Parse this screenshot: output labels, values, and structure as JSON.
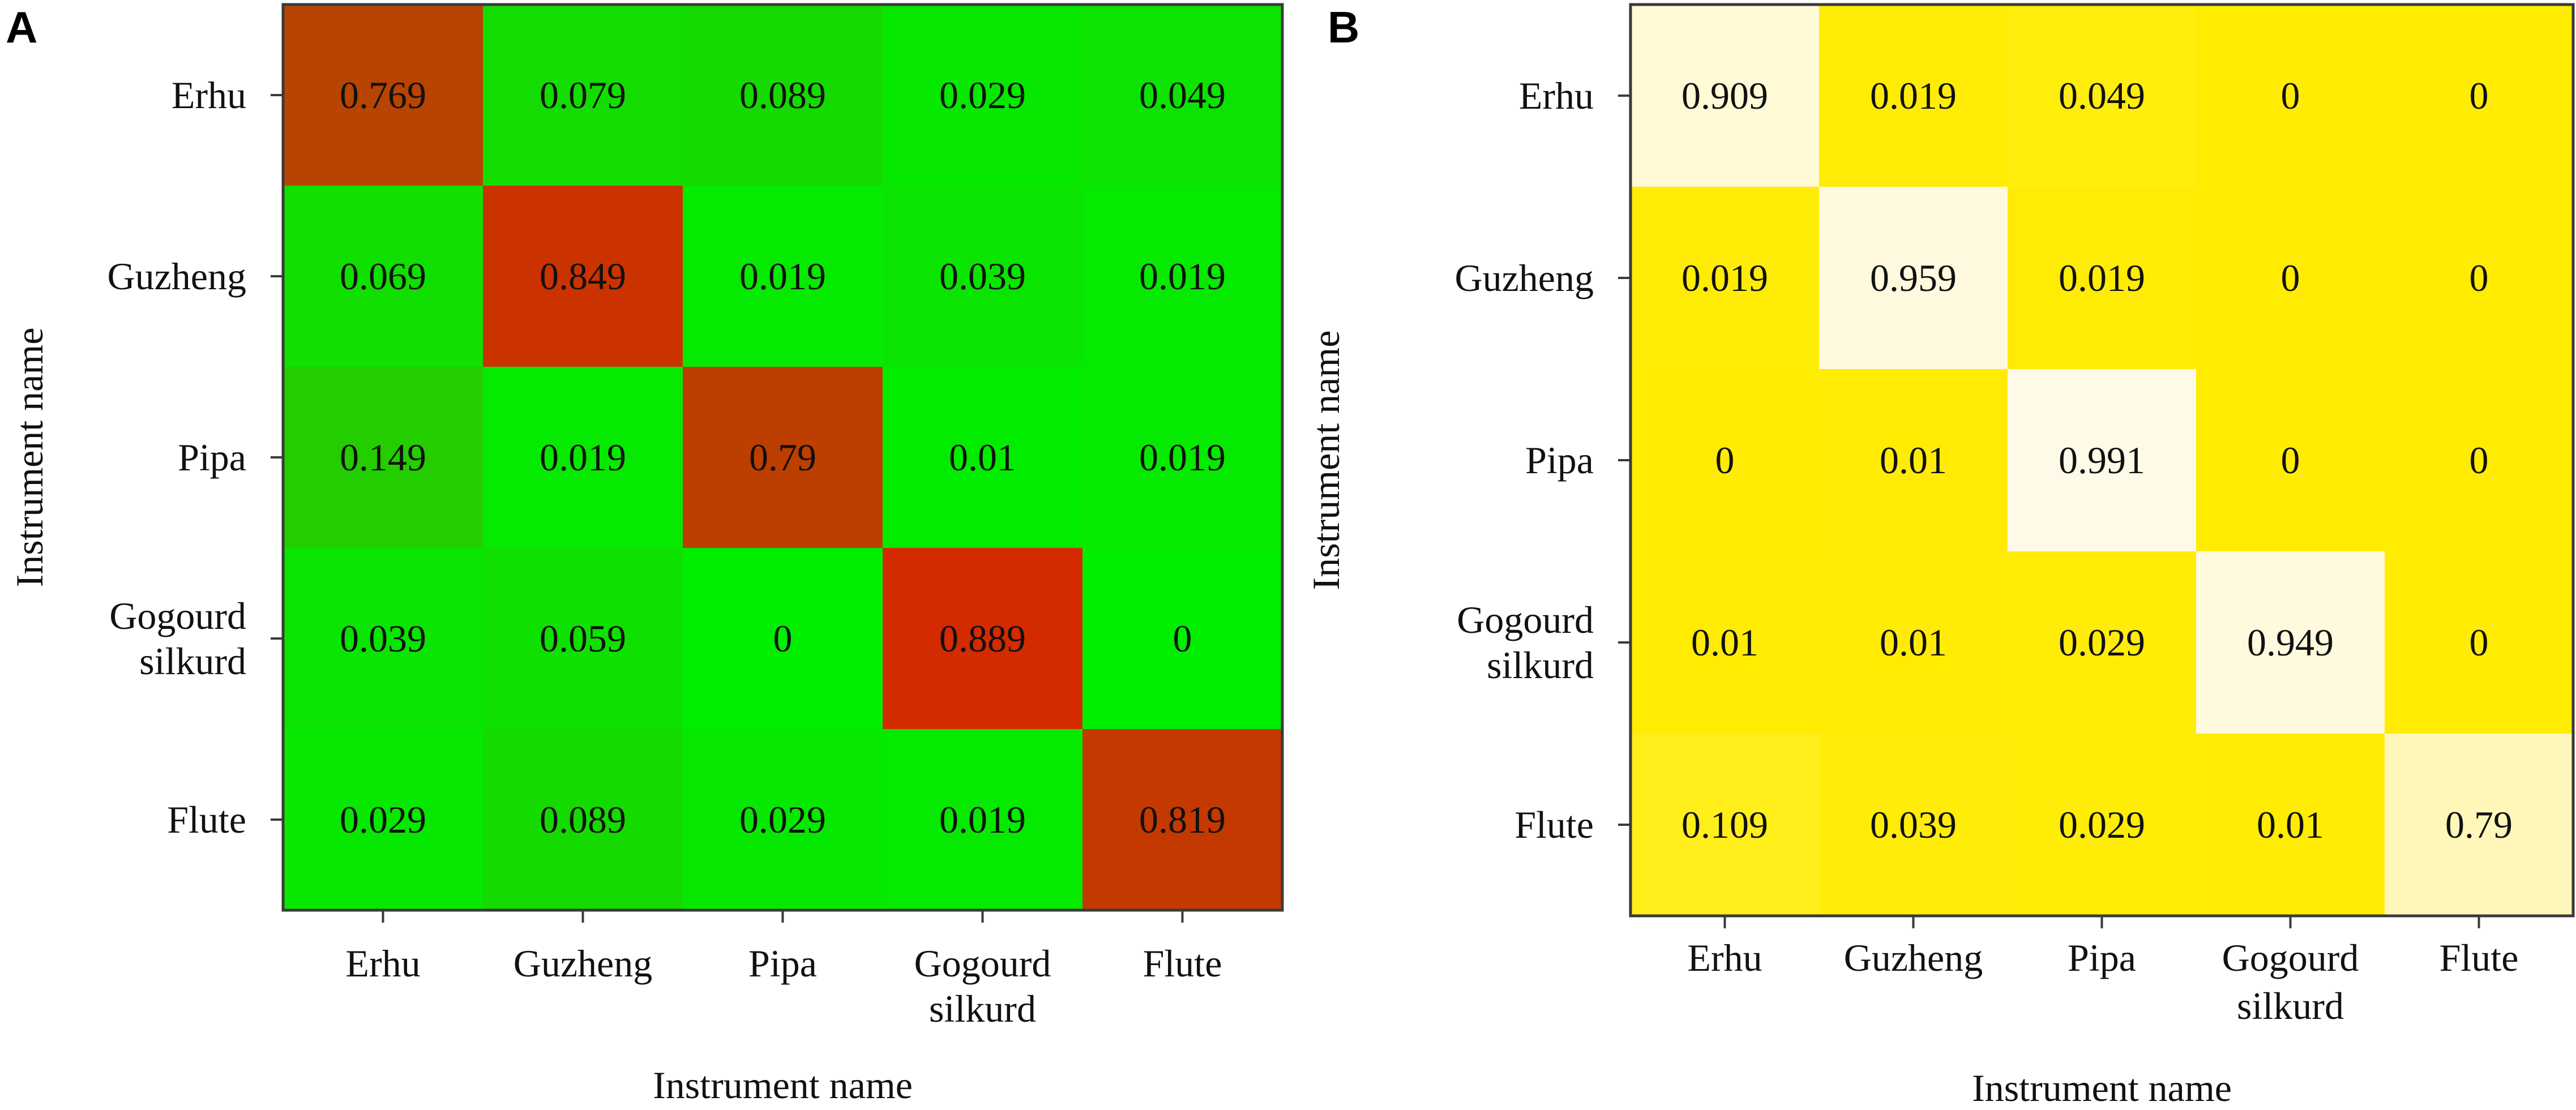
{
  "chart_data": [
    {
      "type": "heatmap",
      "panel_label": "A",
      "rows": [
        "Erhu",
        "Guzheng",
        "Pipa",
        "Gogourd\nsilkurd",
        "Flute"
      ],
      "columns": [
        "Erhu",
        "Guzheng",
        "Pipa",
        "Gogourd\nsilkurd",
        "Flute"
      ],
      "values": [
        [
          0.769,
          0.079,
          0.089,
          0.029,
          0.049
        ],
        [
          0.069,
          0.849,
          0.019,
          0.039,
          0.019
        ],
        [
          0.149,
          0.019,
          0.79,
          0.01,
          0.019
        ],
        [
          0.039,
          0.059,
          0,
          0.889,
          0
        ],
        [
          0.029,
          0.089,
          0.029,
          0.019,
          0.819
        ]
      ],
      "xlabel": "Instrument name",
      "ylabel": "Instrument name",
      "color_low": "#00ee00",
      "color_high": "#ee1100",
      "legend": "none"
    },
    {
      "type": "heatmap",
      "panel_label": "B",
      "rows": [
        "Erhu",
        "Guzheng",
        "Pipa",
        "Gogourd\nsilkurd",
        "Flute"
      ],
      "columns": [
        "Erhu",
        "Guzheng",
        "Pipa",
        "Gogourd\nsilkurd",
        "Flute"
      ],
      "values": [
        [
          0.909,
          0.019,
          0.049,
          0,
          0
        ],
        [
          0.019,
          0.959,
          0.019,
          0,
          0
        ],
        [
          0,
          0.01,
          0.991,
          0,
          0
        ],
        [
          0.01,
          0.01,
          0.029,
          0.949,
          0
        ],
        [
          0.109,
          0.039,
          0.029,
          0.01,
          0.79
        ]
      ],
      "xlabel": "Instrument name",
      "ylabel": "Instrument name",
      "color_low": "#ffec00",
      "color_high": "#fffaea",
      "legend": "none"
    }
  ]
}
